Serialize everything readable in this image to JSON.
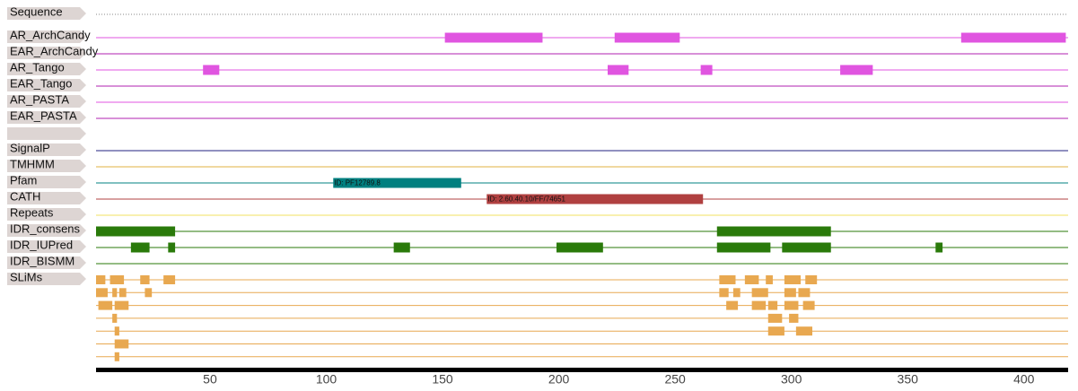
{
  "axis": {
    "xlim": [
      1,
      419
    ],
    "ticks": [
      50,
      100,
      150,
      200,
      250,
      300,
      350,
      400
    ]
  },
  "tracks": [
    {
      "label": "Sequence",
      "color": "#888888",
      "style": "dotted",
      "features": []
    },
    {
      "label": "AR_ArchCandy",
      "color": "#e055e0",
      "features": [
        {
          "start": 151,
          "end": 193
        },
        {
          "start": 224,
          "end": 252
        },
        {
          "start": 373,
          "end": 418
        }
      ]
    },
    {
      "label": "EAR_ArchCandy",
      "color": "#b020b0",
      "features": []
    },
    {
      "label": "AR_Tango",
      "color": "#e055e0",
      "features": [
        {
          "start": 47,
          "end": 54
        },
        {
          "start": 221,
          "end": 230
        },
        {
          "start": 261,
          "end": 266
        },
        {
          "start": 321,
          "end": 335
        }
      ]
    },
    {
      "label": "EAR_Tango",
      "color": "#b020b0",
      "features": []
    },
    {
      "label": "AR_PASTA",
      "color": "#e055e0",
      "features": []
    },
    {
      "label": "EAR_PASTA",
      "color": "#b020b0",
      "features": []
    },
    {
      "color": "#ffffff",
      "features": []
    },
    {
      "label": "SignalP",
      "color": "#202080",
      "features": []
    },
    {
      "label": "TMHMM",
      "color": "#e0b040",
      "features": []
    },
    {
      "label": "Pfam",
      "color": "#008080",
      "features": [
        {
          "start": 103,
          "end": 158,
          "label": "ID: PF12789.8"
        }
      ]
    },
    {
      "label": "CATH",
      "color": "#b04040",
      "features": [
        {
          "start": 169,
          "end": 262,
          "label": "ID: 2.60.40.10/FF/74651"
        }
      ]
    },
    {
      "label": "Repeats",
      "color": "#f0e060",
      "features": []
    },
    {
      "label": "IDR_consens",
      "color": "#2a7a0a",
      "features": [
        {
          "start": 1,
          "end": 35
        },
        {
          "start": 268,
          "end": 317
        }
      ]
    },
    {
      "label": "IDR_IUPred",
      "color": "#2a7a0a",
      "features": [
        {
          "start": 16,
          "end": 24
        },
        {
          "start": 32,
          "end": 35
        },
        {
          "start": 129,
          "end": 136
        },
        {
          "start": 199,
          "end": 219
        },
        {
          "start": 268,
          "end": 291
        },
        {
          "start": 296,
          "end": 317
        },
        {
          "start": 362,
          "end": 365
        }
      ]
    },
    {
      "label": "IDR_BISMM",
      "color": "#2a7a0a",
      "features": []
    },
    {
      "label": "SLiMs",
      "color": "#e8a850",
      "rows": [
        [
          {
            "start": 1,
            "end": 5
          },
          {
            "start": 7,
            "end": 13
          },
          {
            "start": 20,
            "end": 24
          },
          {
            "start": 30,
            "end": 35
          },
          {
            "start": 269,
            "end": 276
          },
          {
            "start": 280,
            "end": 286
          },
          {
            "start": 289,
            "end": 292
          },
          {
            "start": 297,
            "end": 304
          },
          {
            "start": 306,
            "end": 311
          }
        ],
        [
          {
            "start": 1,
            "end": 6
          },
          {
            "start": 8,
            "end": 10
          },
          {
            "start": 11,
            "end": 14
          },
          {
            "start": 22,
            "end": 25
          },
          {
            "start": 269,
            "end": 273
          },
          {
            "start": 275,
            "end": 278
          },
          {
            "start": 283,
            "end": 290
          },
          {
            "start": 297,
            "end": 302
          },
          {
            "start": 303,
            "end": 308
          }
        ],
        [
          {
            "start": 2,
            "end": 8
          },
          {
            "start": 9,
            "end": 15
          },
          {
            "start": 272,
            "end": 277
          },
          {
            "start": 283,
            "end": 289
          },
          {
            "start": 290,
            "end": 294
          },
          {
            "start": 297,
            "end": 303
          },
          {
            "start": 305,
            "end": 310
          }
        ],
        [
          {
            "start": 8,
            "end": 10
          },
          {
            "start": 290,
            "end": 296
          },
          {
            "start": 299,
            "end": 303
          }
        ],
        [
          {
            "start": 9,
            "end": 11
          },
          {
            "start": 290,
            "end": 297
          },
          {
            "start": 302,
            "end": 309
          }
        ],
        [
          {
            "start": 9,
            "end": 15
          }
        ],
        [
          {
            "start": 9,
            "end": 11
          }
        ]
      ]
    }
  ]
}
